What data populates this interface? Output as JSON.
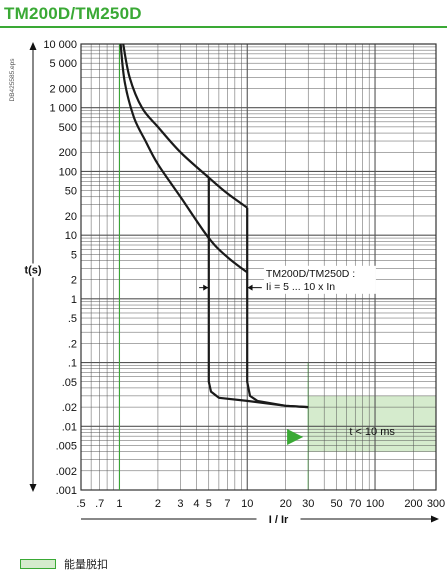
{
  "title": "TM200D/TM250D",
  "chart_data": {
    "type": "line",
    "title": "TM200D/TM250D",
    "side_code": "DB425585.eps",
    "xlabel": "I / Ir",
    "ylabel": "t(s)",
    "xscale": "log",
    "yscale": "log",
    "xlim": [
      0.5,
      300
    ],
    "ylim": [
      0.001,
      10000
    ],
    "x_ticks": [
      {
        "value": 0.5,
        "label": ".5"
      },
      {
        "value": 0.7,
        "label": ".7"
      },
      {
        "value": 1,
        "label": "1"
      },
      {
        "value": 2,
        "label": "2"
      },
      {
        "value": 3,
        "label": "3"
      },
      {
        "value": 4,
        "label": "4"
      },
      {
        "value": 5,
        "label": "5"
      },
      {
        "value": 7,
        "label": "7"
      },
      {
        "value": 10,
        "label": "10"
      },
      {
        "value": 20,
        "label": "20"
      },
      {
        "value": 30,
        "label": "30"
      },
      {
        "value": 50,
        "label": "50"
      },
      {
        "value": 70,
        "label": "70"
      },
      {
        "value": 100,
        "label": "100"
      },
      {
        "value": 200,
        "label": "200"
      },
      {
        "value": 300,
        "label": "300"
      }
    ],
    "y_ticks": [
      {
        "value": 10000,
        "label": "10 000"
      },
      {
        "value": 5000,
        "label": "5 000"
      },
      {
        "value": 2000,
        "label": "2 000"
      },
      {
        "value": 1000,
        "label": "1 000"
      },
      {
        "value": 500,
        "label": "500"
      },
      {
        "value": 200,
        "label": "200"
      },
      {
        "value": 100,
        "label": "100"
      },
      {
        "value": 50,
        "label": "50"
      },
      {
        "value": 20,
        "label": "20"
      },
      {
        "value": 10,
        "label": "10"
      },
      {
        "value": 5,
        "label": "5"
      },
      {
        "value": 2,
        "label": "2"
      },
      {
        "value": 1,
        "label": "1"
      },
      {
        "value": 0.5,
        "label": ".5"
      },
      {
        "value": 0.2,
        "label": ".2"
      },
      {
        "value": 0.1,
        "label": ".1"
      },
      {
        "value": 0.05,
        "label": ".05"
      },
      {
        "value": 0.02,
        "label": ".02"
      },
      {
        "value": 0.01,
        "label": ".01"
      },
      {
        "value": 0.005,
        "label": ".005"
      },
      {
        "value": 0.002,
        "label": ".002"
      },
      {
        "value": 0.001,
        "label": ".001"
      }
    ],
    "series": [
      {
        "values": [
          [
            1.07,
            10000
          ],
          [
            1.2,
            3000
          ],
          [
            1.5,
            1000
          ],
          [
            2,
            500
          ],
          [
            3,
            200
          ],
          [
            5,
            80
          ],
          [
            7,
            45
          ],
          [
            10,
            27
          ]
        ]
      },
      {
        "values": [
          [
            1.02,
            10000
          ],
          [
            1.1,
            2500
          ],
          [
            1.3,
            700
          ],
          [
            1.6,
            300
          ],
          [
            2,
            130
          ],
          [
            3,
            40
          ],
          [
            5,
            9
          ],
          [
            7,
            4.5
          ],
          [
            10,
            2.6
          ]
        ]
      },
      {
        "values": [
          [
            5,
            80
          ],
          [
            5,
            0.05
          ],
          [
            5.2,
            0.035
          ],
          [
            6,
            0.028
          ],
          [
            10,
            0.025
          ],
          [
            20,
            0.021
          ],
          [
            30,
            0.02
          ]
        ]
      },
      {
        "values": [
          [
            10,
            27
          ],
          [
            10,
            0.05
          ],
          [
            10.5,
            0.03
          ],
          [
            12,
            0.025
          ],
          [
            20,
            0.021
          ],
          [
            30,
            0.02
          ]
        ]
      }
    ],
    "annotations": [
      {
        "label_lines": [
          "TM200D/TM250D :",
          "Ii = 5 ... 10 x In"
        ]
      },
      {
        "text": "t < 10 ms"
      }
    ],
    "region": {
      "x": [
        30,
        300
      ],
      "y": [
        0.004,
        0.03
      ],
      "fill": "#d5ebcd",
      "edge": "#3aa935"
    },
    "legend": {
      "label": "能量脱扣",
      "swatch_color": "#d5ebcd"
    },
    "grid": true,
    "colors": {
      "title": "#3aa935",
      "curve": "#1a1a1a",
      "grid": "#555555",
      "accent": "#3aa935"
    }
  }
}
